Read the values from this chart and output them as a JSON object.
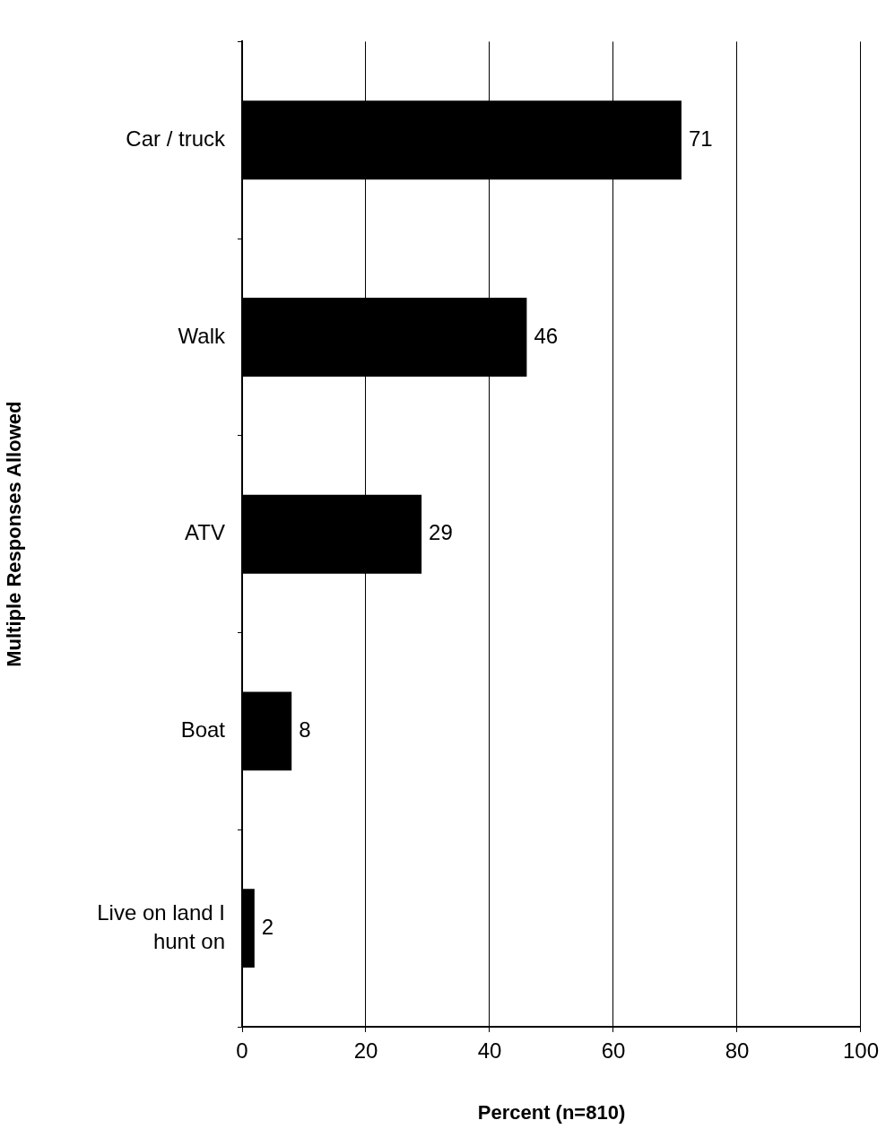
{
  "chart_data": {
    "type": "bar",
    "orientation": "horizontal",
    "xlabel": "Percent (n=810)",
    "ylabel": "Multiple Responses Allowed",
    "categories": [
      "Car / truck",
      "Walk",
      "ATV",
      "Boat",
      "Live on land I hunt on"
    ],
    "values": [
      71,
      46,
      29,
      8,
      2
    ],
    "color": "#000000",
    "xlim": [
      0,
      100
    ],
    "xticks": [
      0,
      20,
      40,
      60,
      80,
      100
    ],
    "grid": "x",
    "data_labels": true,
    "legend": false
  }
}
